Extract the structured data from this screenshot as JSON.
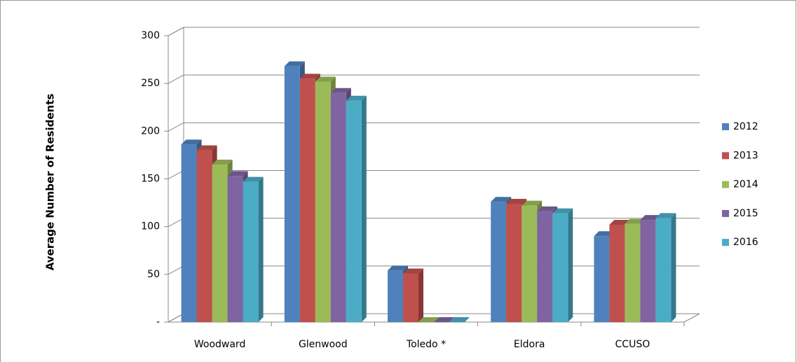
{
  "chart_data": {
    "type": "bar3d",
    "y_label": "Average Number of Residents",
    "categories": [
      "Woodward",
      "Glenwood",
      "Toledo *",
      "Eldora",
      "CCUSO"
    ],
    "series": [
      {
        "name": "2012",
        "color": "#4f81bd",
        "values": [
          186,
          268,
          54,
          126,
          90
        ]
      },
      {
        "name": "2013",
        "color": "#c0504d",
        "values": [
          180,
          255,
          51,
          124,
          102
        ]
      },
      {
        "name": "2014",
        "color": "#9bbb59",
        "values": [
          165,
          252,
          0,
          122,
          103
        ]
      },
      {
        "name": "2015",
        "color": "#8064a2",
        "values": [
          153,
          240,
          0,
          116,
          107
        ]
      },
      {
        "name": "2016",
        "color": "#4bacc6",
        "values": [
          147,
          232,
          0,
          114,
          109
        ]
      }
    ],
    "ylim": [
      0,
      300
    ],
    "yticks": [
      {
        "value": 0,
        "label": "-"
      },
      50,
      100,
      150,
      200,
      250,
      300
    ],
    "grid": true,
    "legend": "right"
  }
}
